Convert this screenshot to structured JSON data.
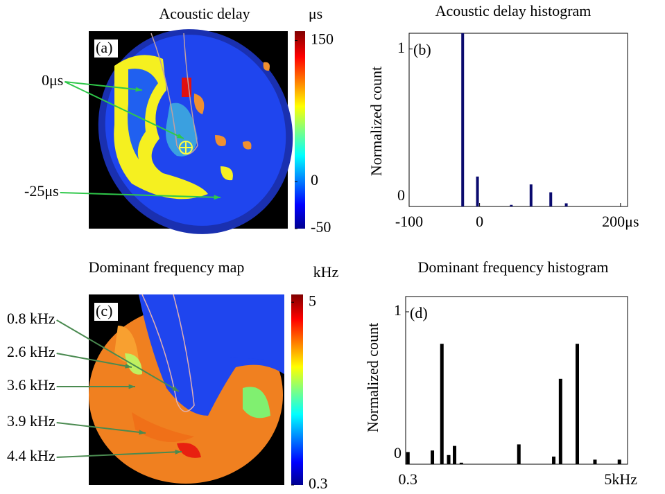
{
  "chart_data": [
    {
      "type": "image-map",
      "title": "Acoustic delay",
      "panel_label": "(a)",
      "colorbar_label": "μs",
      "clim": [
        -50,
        160
      ],
      "cticks": [
        150,
        0,
        -50
      ],
      "annotations": [
        "0μs",
        "-25μs"
      ]
    },
    {
      "type": "bar",
      "title": "Acoustic delay histogram",
      "panel_label": "(b)",
      "ylabel": "Normalized count",
      "x": [
        -24,
        -3,
        45,
        73,
        101,
        123
      ],
      "values": [
        1.1,
        0.19,
        0.01,
        0.14,
        0.09,
        0.02
      ],
      "color": "#0a0a6e",
      "xlim": [
        -100,
        210
      ],
      "xticks": [
        -100,
        0,
        {
          "value": 200,
          "label": "200μs"
        }
      ],
      "ylim": [
        0,
        1.1
      ],
      "yticks": [
        0,
        1
      ]
    },
    {
      "type": "image-map",
      "title": "Dominant frequency map",
      "panel_label": "(c)",
      "colorbar_label": "kHz",
      "clim": [
        0.3,
        5.2
      ],
      "cticks": [
        5,
        0.3
      ],
      "annotations": [
        "0.8 kHz",
        "2.6 kHz",
        "3.6 kHz",
        "3.9 kHz",
        "4.4 kHz"
      ]
    },
    {
      "type": "bar",
      "title": "Dominant frequency histogram",
      "panel_label": "(d)",
      "ylabel": "Normalized count",
      "x": [
        0.3,
        0.84,
        1.05,
        1.2,
        1.33,
        1.48,
        2.75,
        3.52,
        3.67,
        4.04,
        4.43,
        4.97
      ],
      "values": [
        0.08,
        0.09,
        0.79,
        0.06,
        0.12,
        0.01,
        0.13,
        0.05,
        0.56,
        0.79,
        0.03,
        0.03
      ],
      "color": "#000000",
      "xlim": [
        0.25,
        5.15
      ],
      "xticks": [
        0.3,
        {
          "value": 5,
          "label": "5kHz"
        }
      ],
      "ylim": [
        0,
        1.1
      ],
      "yticks": [
        0,
        1
      ]
    }
  ]
}
